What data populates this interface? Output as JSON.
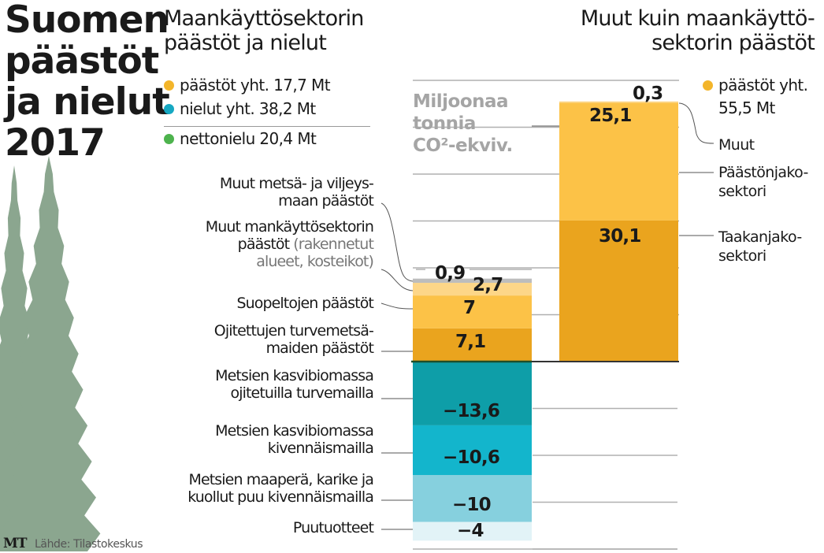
{
  "main_title": "Suomen\npäästöt\nja nielut\n2017",
  "left_subtitle": "Maankäyttösektorin\npäästöt ja nielut",
  "right_subtitle": "Muut kuin maankäyttö-\nsektorin päästöt",
  "unit_label": "Miljoonaa\ntonnia\nCO²-ekviv.",
  "legend_left": [
    {
      "label": "päästöt yht. 17,7 Mt",
      "color": "#f3b52a"
    },
    {
      "label": "nielut yht. 38,2 Mt",
      "color": "#16a8c2"
    },
    {
      "label": "nettonielu 20,4 Mt",
      "color": "#4db34d"
    }
  ],
  "legend_right": {
    "label": "päästöt yht.",
    "label2": "55,5 Mt",
    "color": "#f3b52a"
  },
  "source": "Lähde: Tilastokeskus",
  "logo": "MT",
  "colors": {
    "tree": "#8ba68f",
    "gridline": "#b0b0b0",
    "axis": "#333333"
  },
  "chart_data": {
    "type": "bar",
    "title": "Suomen päästöt ja nielut 2017",
    "ylabel": "Miljoonaa tonnia CO²-ekviv.",
    "ylim": [
      -40,
      60
    ],
    "grid": true,
    "stacked": true,
    "bars": [
      {
        "name": "Maankäyttösektorin päästöt ja nielut",
        "segments": [
          {
            "label": "Ojitettujen turvemetsä-\nmaiden päästöt",
            "value": 7.1,
            "display": "7,1",
            "color": "#eaa41e"
          },
          {
            "label": "Suopeltojen päästöt",
            "value": 7,
            "display": "7",
            "color": "#fcc247"
          },
          {
            "label": "Muut mankäyttösektorin\npäästöt",
            "label_muted": " (rakennetut\nalueet, kosteikot)",
            "value": 2.7,
            "display": "2,7",
            "color": "#fdd688"
          },
          {
            "label": "Muut metsä- ja viljeys-\nmaan päästöt",
            "value": 0.9,
            "display": "0,9",
            "color": "#bdbdbd"
          },
          {
            "label": "Metsien kasvibiomassa\nojitetuilla turvemailla",
            "value": -13.6,
            "display": "−13,6",
            "color": "#0e9ea8"
          },
          {
            "label": "Metsien kasvibiomassa\nkivennäismailla",
            "value": -10.6,
            "display": "−10,6",
            "color": "#13b5cc"
          },
          {
            "label": "Metsien maaperä, karike ja\nkuollut puu kivennäismailla",
            "value": -10,
            "display": "−10",
            "color": "#86d0de"
          },
          {
            "label": "Puutuotteet",
            "value": -4,
            "display": "−4",
            "color": "#e2f3f7"
          }
        ]
      },
      {
        "name": "Muut kuin maankäyttösektorin päästöt",
        "segments": [
          {
            "label": "Taakanjako-\nsektori",
            "value": 30.1,
            "display": "30,1",
            "color": "#eaa41e"
          },
          {
            "label": "Päästönjako-\nsektori",
            "value": 25.1,
            "display": "25,1",
            "color": "#fcc247"
          },
          {
            "label": "Muut",
            "value": 0.3,
            "display": "0,3",
            "color": "#fdd688"
          }
        ]
      }
    ]
  }
}
